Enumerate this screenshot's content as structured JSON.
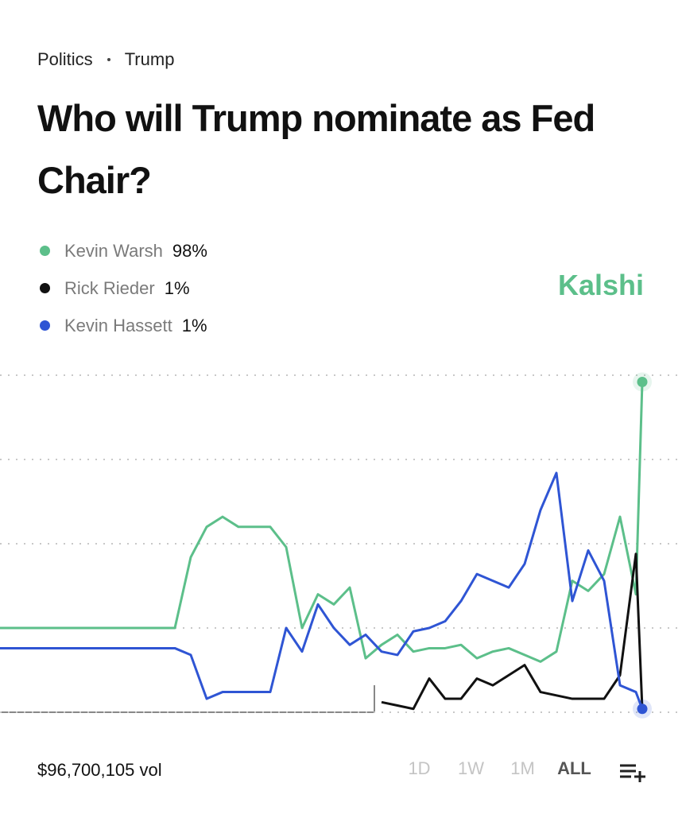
{
  "breadcrumb": [
    "Politics",
    "Trump"
  ],
  "brand": "Kalshi",
  "volume": "$96,700,105 vol",
  "timeframes": [
    "1D",
    "1W",
    "1M",
    "ALL"
  ],
  "selected_timeframe": "ALL",
  "chart_data": {
    "type": "line",
    "title": "Who will Trump nominate as Fed Chair?",
    "x": [
      0,
      20,
      40,
      60,
      80,
      100,
      120,
      140,
      160,
      180,
      200,
      220,
      240,
      260,
      280,
      300,
      320,
      340,
      360,
      380,
      400,
      420,
      440,
      460,
      480,
      500,
      520,
      540,
      560,
      580,
      600,
      620,
      640,
      660,
      680,
      700,
      720,
      740,
      760,
      780,
      800,
      808
    ],
    "xlim": [
      0,
      808
    ],
    "ylim": [
      0,
      100
    ],
    "yticks": [
      0,
      25,
      50,
      75,
      100
    ],
    "grid": true,
    "series": [
      {
        "name": "Kevin Warsh",
        "color": "#5cbf8a",
        "value_label": "98%",
        "values": [
          25,
          25,
          25,
          25,
          25,
          25,
          25,
          25,
          25,
          25,
          25,
          25,
          46,
          55,
          58,
          55,
          55,
          55,
          49,
          25,
          35,
          32,
          37,
          16,
          20,
          23,
          18,
          19,
          19,
          20,
          16,
          18,
          19,
          17,
          15,
          18,
          39,
          36,
          41,
          58,
          35,
          98
        ]
      },
      {
        "name": "Rick Rieder",
        "color": "#111111",
        "value_label": "1%",
        "values": [
          null,
          null,
          null,
          null,
          null,
          null,
          null,
          null,
          null,
          null,
          null,
          null,
          null,
          null,
          null,
          null,
          null,
          null,
          null,
          null,
          null,
          null,
          null,
          null,
          3,
          2,
          1,
          10,
          4,
          4,
          10,
          8,
          11,
          14,
          6,
          5,
          4,
          4,
          4,
          11,
          47,
          1
        ]
      },
      {
        "name": "Kevin Hassett",
        "color": "#2f55d4",
        "value_label": "1%",
        "values": [
          19,
          19,
          19,
          19,
          19,
          19,
          19,
          19,
          19,
          19,
          19,
          19,
          17,
          4,
          6,
          6,
          6,
          6,
          25,
          18,
          32,
          25,
          20,
          23,
          18,
          17,
          24,
          25,
          27,
          33,
          41,
          39,
          37,
          44,
          60,
          71,
          33,
          48,
          39,
          8,
          6,
          1
        ]
      }
    ]
  }
}
